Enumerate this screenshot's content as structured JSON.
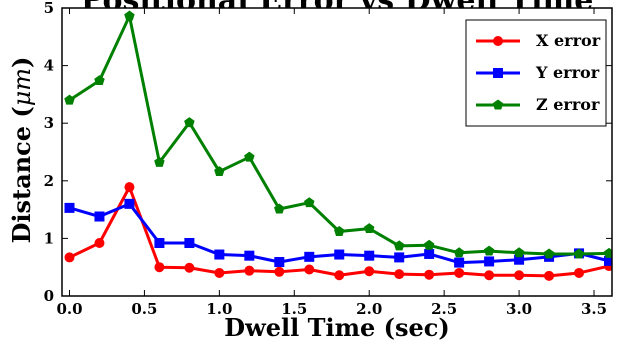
{
  "chart_data": {
    "type": "line",
    "title": "Positional Error vs Dwell Time",
    "xlabel": "Dwell Time (sec)",
    "ylabel": "Distance (μm)",
    "ylabel_main": "Distance (",
    "ylabel_unit": "μm",
    "ylabel_close": ")",
    "xlim": [
      -0.05,
      3.62
    ],
    "ylim": [
      0,
      5
    ],
    "xticks": [
      "0.0",
      "0.5",
      "1.0",
      "1.5",
      "2.0",
      "2.5",
      "3.0",
      "3.5"
    ],
    "yticks": [
      "0",
      "1",
      "2",
      "3",
      "4",
      "5"
    ],
    "grid": false,
    "legend_position": "top-right",
    "x": [
      0.0,
      0.2,
      0.4,
      0.6,
      0.8,
      1.0,
      1.2,
      1.4,
      1.6,
      1.8,
      2.0,
      2.2,
      2.4,
      2.6,
      2.8,
      3.0,
      3.2,
      3.4,
      3.6
    ],
    "series": [
      {
        "name": "X error",
        "color": "#ff0000",
        "marker": "circle",
        "values": [
          0.67,
          0.92,
          1.89,
          0.5,
          0.49,
          0.4,
          0.44,
          0.42,
          0.46,
          0.36,
          0.43,
          0.38,
          0.37,
          0.4,
          0.36,
          0.36,
          0.35,
          0.4,
          0.52
        ]
      },
      {
        "name": "Y error",
        "color": "#0000ff",
        "marker": "square",
        "values": [
          1.53,
          1.38,
          1.6,
          0.92,
          0.92,
          0.72,
          0.7,
          0.59,
          0.68,
          0.72,
          0.7,
          0.67,
          0.73,
          0.58,
          0.6,
          0.63,
          0.68,
          0.74,
          0.61
        ]
      },
      {
        "name": "Z error",
        "color": "#008000",
        "marker": "pentagon",
        "values": [
          3.4,
          3.74,
          4.86,
          2.32,
          3.01,
          2.16,
          2.41,
          1.51,
          1.62,
          1.12,
          1.17,
          0.87,
          0.88,
          0.75,
          0.78,
          0.75,
          0.73,
          0.73,
          0.74
        ]
      }
    ]
  }
}
